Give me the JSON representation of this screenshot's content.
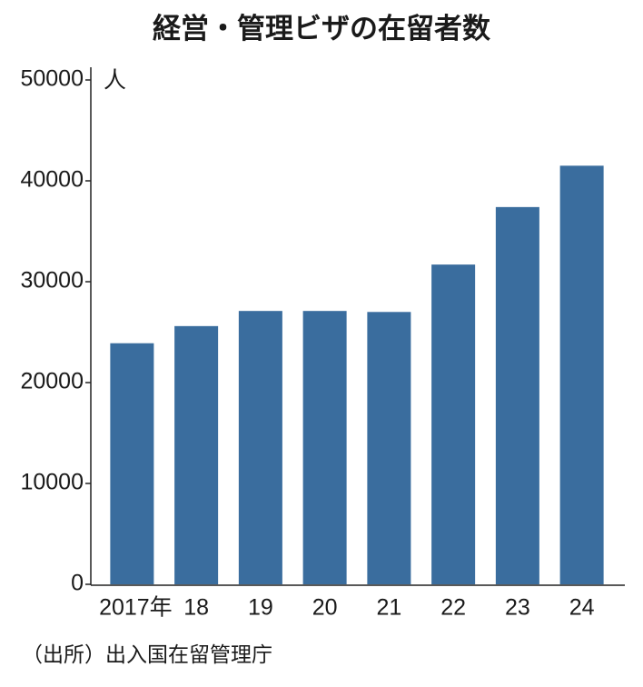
{
  "chart_data": {
    "type": "bar",
    "title": "経営・管理ビザの在留者数",
    "y_unit": "人",
    "categories": [
      "2017年",
      "18",
      "19",
      "20",
      "21",
      "22",
      "23",
      "24"
    ],
    "values": [
      23900,
      25600,
      27100,
      27100,
      27000,
      31700,
      37400,
      41500
    ],
    "color": "#3a6d9e",
    "ylim": [
      0,
      50000
    ],
    "yticks": [
      0,
      10000,
      20000,
      30000,
      40000,
      50000
    ],
    "grid": false,
    "source": "（出所）出入国在留管理庁"
  }
}
